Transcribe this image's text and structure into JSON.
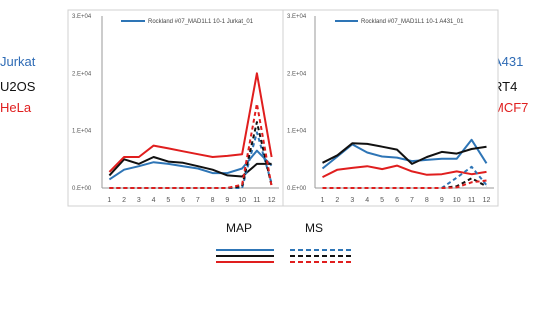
{
  "side_labels": {
    "left": [
      {
        "text": "Jurkat",
        "color": "#2e6bb5"
      },
      {
        "text": "U2OS",
        "color": "#111111"
      },
      {
        "text": "HeLa",
        "color": "#e01e1e"
      }
    ],
    "right": [
      {
        "text": "A431",
        "color": "#2e6bb5"
      },
      {
        "text": "RT4",
        "color": "#111111"
      },
      {
        "text": "MCF7",
        "color": "#e01e1e"
      }
    ]
  },
  "key": {
    "map_label": "MAP",
    "ms_label": "MS",
    "colors": [
      "#2e75b6",
      "#111111",
      "#e01e1e"
    ]
  },
  "chart_data": [
    {
      "type": "line",
      "legend": "Rockland #07_MAD1L1 10-1 Jurkat_01",
      "legend_color": "#2e75b6",
      "x": [
        1,
        2,
        3,
        4,
        5,
        6,
        7,
        8,
        9,
        10,
        11,
        12
      ],
      "xlim": [
        0.5,
        12.5
      ],
      "ylim": [
        0,
        30000
      ],
      "yticks": [
        "0.E+00",
        "1.E+04",
        "2.E+04",
        "3.E+04"
      ],
      "series": [
        {
          "color": "#2e75b6",
          "style": "solid",
          "values": [
            1500,
            3200,
            3800,
            4500,
            4200,
            3800,
            3400,
            2600,
            2600,
            3400,
            6500,
            3900
          ]
        },
        {
          "color": "#111111",
          "style": "solid",
          "values": [
            2200,
            5000,
            4200,
            5400,
            4600,
            4400,
            3800,
            3200,
            2200,
            2000,
            4200,
            4200
          ]
        },
        {
          "color": "#e01e1e",
          "style": "solid",
          "values": [
            2800,
            5400,
            5400,
            7400,
            6900,
            6400,
            5900,
            5400,
            5600,
            5900,
            20000,
            5400
          ]
        },
        {
          "color": "#2e75b6",
          "style": "dashed",
          "values": [
            0,
            0,
            0,
            0,
            0,
            0,
            0,
            0,
            0,
            0,
            9700,
            800
          ]
        },
        {
          "color": "#111111",
          "style": "dashed",
          "values": [
            0,
            0,
            0,
            0,
            0,
            0,
            0,
            0,
            0,
            300,
            11500,
            400
          ]
        },
        {
          "color": "#e01e1e",
          "style": "dashed",
          "values": [
            0,
            0,
            0,
            0,
            0,
            0,
            0,
            0,
            0,
            600,
            14700,
            300
          ]
        }
      ]
    },
    {
      "type": "line",
      "legend": "Rockland #07_MAD1L1 10-1 A431_01",
      "legend_color": "#2e75b6",
      "x": [
        1,
        2,
        3,
        4,
        5,
        6,
        7,
        8,
        9,
        10,
        11,
        12
      ],
      "xlim": [
        0.5,
        12.5
      ],
      "ylim": [
        0,
        30000
      ],
      "yticks": [
        "0.E+00",
        "1.E+04",
        "2.E+04",
        "3.E+04"
      ],
      "series": [
        {
          "color": "#2e75b6",
          "style": "solid",
          "values": [
            3400,
            5500,
            7600,
            6200,
            5500,
            5300,
            4700,
            4900,
            5100,
            5100,
            8400,
            4300
          ]
        },
        {
          "color": "#111111",
          "style": "solid",
          "values": [
            4400,
            5700,
            7800,
            7700,
            7200,
            6700,
            4200,
            5400,
            6300,
            6000,
            6800,
            7200
          ]
        },
        {
          "color": "#e01e1e",
          "style": "solid",
          "values": [
            1900,
            3200,
            3500,
            3800,
            3300,
            3900,
            2900,
            2300,
            2400,
            2900,
            2400,
            2800
          ]
        },
        {
          "color": "#2e75b6",
          "style": "dashed",
          "values": [
            0,
            0,
            0,
            0,
            0,
            0,
            0,
            0,
            0,
            1800,
            3700,
            500
          ]
        },
        {
          "color": "#111111",
          "style": "dashed",
          "values": [
            0,
            0,
            0,
            0,
            0,
            0,
            0,
            0,
            0,
            300,
            1700,
            300
          ]
        },
        {
          "color": "#e01e1e",
          "style": "dashed",
          "values": [
            0,
            0,
            0,
            0,
            0,
            0,
            0,
            0,
            0,
            100,
            1000,
            1300
          ]
        }
      ]
    }
  ]
}
